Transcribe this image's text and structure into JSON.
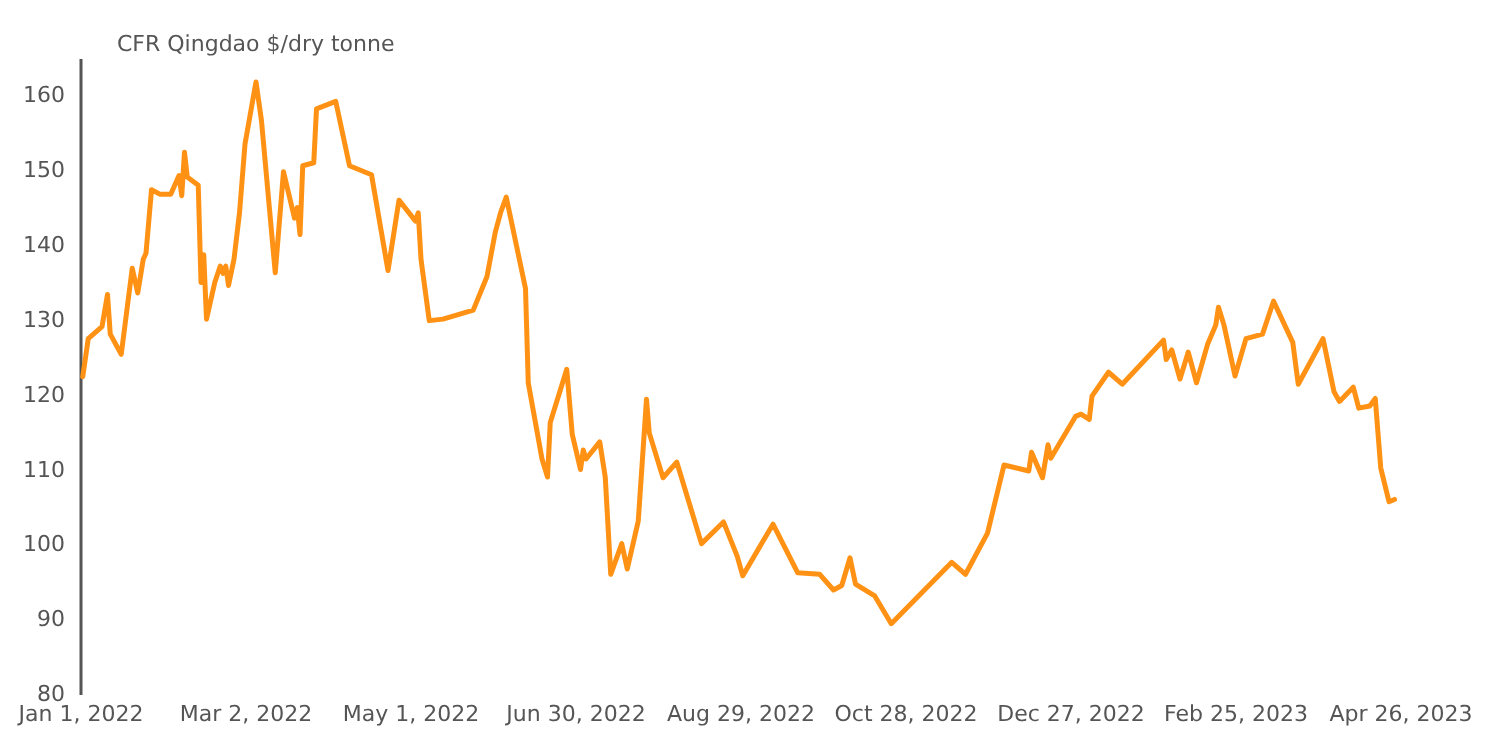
{
  "chart_data": {
    "type": "line",
    "ylabel": "CFR Qingdao $/dry tonne",
    "x": [
      "2022-01-02",
      "2022-01-04",
      "2022-01-09",
      "2022-01-11",
      "2022-01-12",
      "2022-01-16",
      "2022-01-20",
      "2022-01-22",
      "2022-01-24",
      "2022-01-25",
      "2022-01-27",
      "2022-01-30",
      "2022-02-03",
      "2022-02-06",
      "2022-02-07",
      "2022-02-08",
      "2022-02-09",
      "2022-02-13",
      "2022-02-14",
      "2022-02-15",
      "2022-02-16",
      "2022-02-19",
      "2022-02-21",
      "2022-02-22",
      "2022-02-23",
      "2022-02-24",
      "2022-02-26",
      "2022-02-28",
      "2022-03-02",
      "2022-03-06",
      "2022-03-08",
      "2022-03-13",
      "2022-03-16",
      "2022-03-20",
      "2022-03-21",
      "2022-03-22",
      "2022-03-23",
      "2022-03-27",
      "2022-03-28",
      "2022-04-04",
      "2022-04-09",
      "2022-04-17",
      "2022-04-23",
      "2022-04-27",
      "2022-05-03",
      "2022-05-04",
      "2022-05-05",
      "2022-05-08",
      "2022-05-13",
      "2022-05-24",
      "2022-05-29",
      "2022-06-01",
      "2022-06-03",
      "2022-06-05",
      "2022-06-12",
      "2022-06-13",
      "2022-06-18",
      "2022-06-20",
      "2022-06-21",
      "2022-06-27",
      "2022-06-29",
      "2022-07-02",
      "2022-07-03",
      "2022-07-04",
      "2022-07-09",
      "2022-07-11",
      "2022-07-13",
      "2022-07-17",
      "2022-07-19",
      "2022-07-23",
      "2022-07-26",
      "2022-07-27",
      "2022-08-01",
      "2022-08-06",
      "2022-08-15",
      "2022-08-23",
      "2022-08-28",
      "2022-08-30",
      "2022-09-10",
      "2022-09-19",
      "2022-09-27",
      "2022-10-02",
      "2022-10-05",
      "2022-10-08",
      "2022-10-10",
      "2022-10-17",
      "2022-10-23",
      "2022-11-14",
      "2022-11-19",
      "2022-11-27",
      "2022-12-03",
      "2022-12-12",
      "2022-12-13",
      "2022-12-17",
      "2022-12-19",
      "2022-12-20",
      "2022-12-29",
      "2022-12-31",
      "2023-01-03",
      "2023-01-04",
      "2023-01-10",
      "2023-01-15",
      "2023-01-30",
      "2023-01-31",
      "2023-02-02",
      "2023-02-05",
      "2023-02-08",
      "2023-02-11",
      "2023-02-15",
      "2023-02-18",
      "2023-02-19",
      "2023-02-21",
      "2023-02-25",
      "2023-03-01",
      "2023-03-07",
      "2023-03-11",
      "2023-03-18",
      "2023-03-20",
      "2023-03-29",
      "2023-04-02",
      "2023-04-04",
      "2023-04-09",
      "2023-04-11",
      "2023-04-15",
      "2023-04-17",
      "2023-04-19",
      "2023-04-22",
      "2023-04-24"
    ],
    "series": [
      {
        "color": "#ff9214",
        "values": [
          122.4,
          127.5,
          129.1,
          133.4,
          128.1,
          125.4,
          136.9,
          133.6,
          138.1,
          138.9,
          147.4,
          146.8,
          146.8,
          149.3,
          146.6,
          152.4,
          149.1,
          148.0,
          135.0,
          138.7,
          130.1,
          135.0,
          137.2,
          136.2,
          137.2,
          134.6,
          138.1,
          144.3,
          153.5,
          161.8,
          156.6,
          136.3,
          149.8,
          143.6,
          145.0,
          141.4,
          150.6,
          151.0,
          158.2,
          159.2,
          150.6,
          149.4,
          136.6,
          146.0,
          143.2,
          144.3,
          138.1,
          129.9,
          130.1,
          131.3,
          135.8,
          141.7,
          144.4,
          146.4,
          134.2,
          121.6,
          111.4,
          109.0,
          116.3,
          123.4,
          114.7,
          110.0,
          112.6,
          111.4,
          113.7,
          109.0,
          96.0,
          100.1,
          96.7,
          103.1,
          119.4,
          114.9,
          108.9,
          111.0,
          100.1,
          103.0,
          98.4,
          95.8,
          102.7,
          96.2,
          96.0,
          93.9,
          94.5,
          98.2,
          94.7,
          93.1,
          89.4,
          97.6,
          96.0,
          101.5,
          110.6,
          109.8,
          112.3,
          108.9,
          113.3,
          111.5,
          117.1,
          117.4,
          116.7,
          119.8,
          123.0,
          121.4,
          127.3,
          124.7,
          126.0,
          122.1,
          125.7,
          121.6,
          126.7,
          129.3,
          131.7,
          129.3,
          122.5,
          127.5,
          128.1,
          132.5,
          127.0,
          121.4,
          127.5,
          120.4,
          119.1,
          121.0,
          118.2,
          118.5,
          119.5,
          110.2,
          105.7,
          106.0
        ]
      }
    ],
    "xlim": [
      "2022-01-01",
      "2023-04-26"
    ],
    "xticks": [
      {
        "value": "2022-01-01",
        "label": "Jan 1, 2022"
      },
      {
        "value": "2022-03-02",
        "label": "Mar 2, 2022"
      },
      {
        "value": "2022-05-01",
        "label": "May 1, 2022"
      },
      {
        "value": "2022-06-30",
        "label": "Jun 30, 2022"
      },
      {
        "value": "2022-08-29",
        "label": "Aug 29, 2022"
      },
      {
        "value": "2022-10-28",
        "label": "Oct 28, 2022"
      },
      {
        "value": "2022-12-27",
        "label": "Dec 27, 2022"
      },
      {
        "value": "2023-02-25",
        "label": "Feb 25, 2023"
      },
      {
        "value": "2023-04-26",
        "label": "Apr 26, 2023"
      }
    ],
    "ylim": [
      80,
      165
    ],
    "yticks": [
      80,
      90,
      100,
      110,
      120,
      130,
      140,
      150,
      160
    ],
    "grid": false,
    "legend": false
  }
}
